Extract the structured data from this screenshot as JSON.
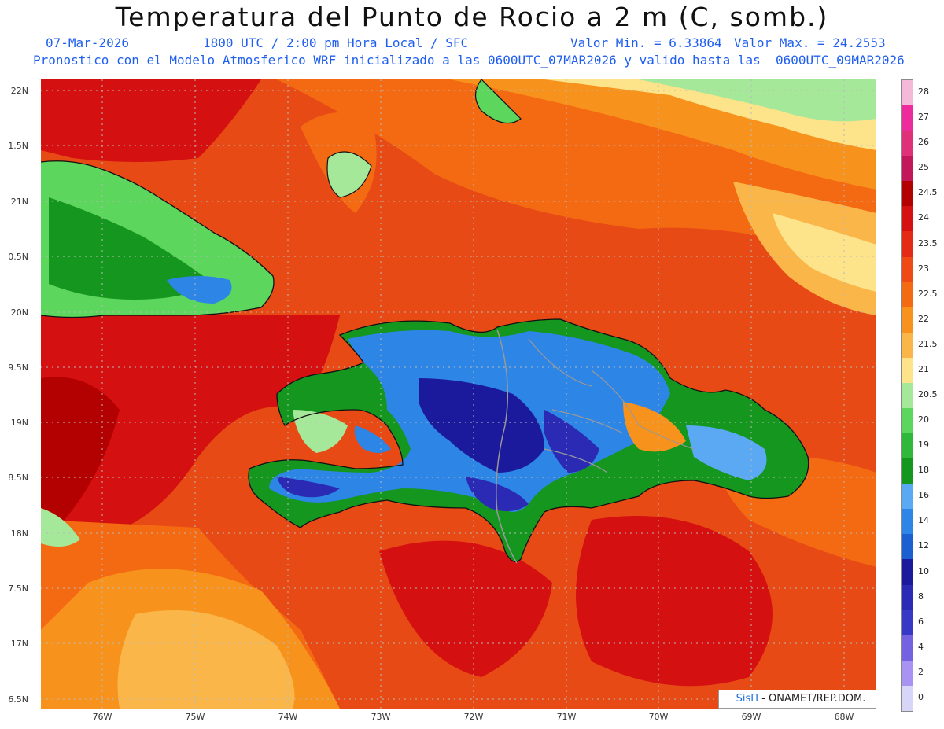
{
  "header": {
    "title": "Temperatura del Punto de Rocio a 2 m (C, somb.)",
    "date": "07-Mar-2026",
    "time": "1800 UTC / 2:00 pm Hora Local / SFC",
    "min_value": "Valor Min. = 6.33864",
    "max_value": "Valor Max. = 24.2553",
    "forecast_info": "Pronostico con el Modelo Atmosferico WRF inicializado a las 0600UTC_07MAR2026 y valido hasta las  0600UTC_09MAR2026"
  },
  "axes": {
    "lat_labels": [
      "22N",
      "1.5N",
      "21N",
      "0.5N",
      "20N",
      "9.5N",
      "19N",
      "8.5N",
      "18N",
      "7.5N",
      "17N",
      "6.5N"
    ],
    "lon_labels": [
      "76W",
      "75W",
      "74W",
      "73W",
      "72W",
      "71W",
      "70W",
      "69W",
      "68W"
    ]
  },
  "colorbar": {
    "labels": [
      "28",
      "27",
      "26",
      "25",
      "24.5",
      "24",
      "23.5",
      "23",
      "22.5",
      "22",
      "21.5",
      "21",
      "20.5",
      "20",
      "19",
      "18",
      "16",
      "14",
      "12",
      "10",
      "8",
      "6",
      "4",
      "2",
      "0"
    ],
    "colors": [
      "#f4b8d8",
      "#ee2b9c",
      "#e0307a",
      "#c2185b",
      "#b30000",
      "#d41010",
      "#e42a14",
      "#ef4a16",
      "#f46a12",
      "#f7931c",
      "#fbb64a",
      "#fde38a",
      "#a6e89a",
      "#5cd65c",
      "#2fb83a",
      "#15961e",
      "#5aa9f2",
      "#2d85e6",
      "#1c5fd0",
      "#1c1a9c",
      "#2b2ab5",
      "#3838c6",
      "#7462e0",
      "#a893f2",
      "#d8d6f8"
    ]
  },
  "credit": {
    "brand": "SisΠ",
    "text": " - ONAMET/REP.DOM."
  }
}
